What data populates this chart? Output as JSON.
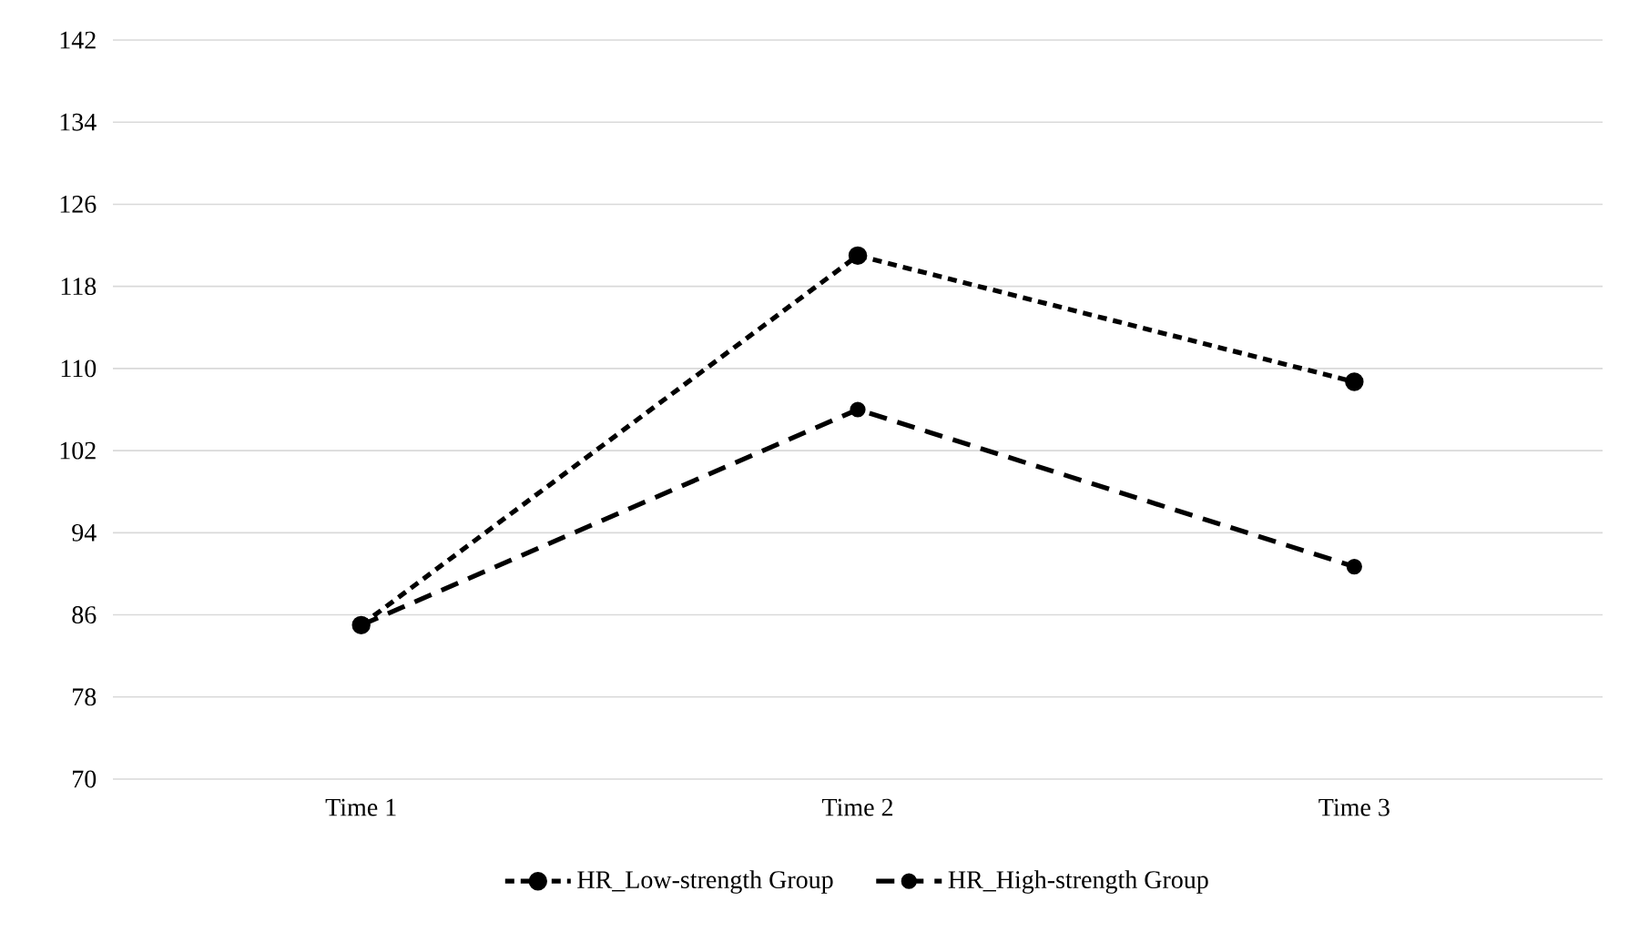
{
  "chart_data": {
    "type": "line",
    "categories": [
      "Time 1",
      "Time 2",
      "Time 3"
    ],
    "series": [
      {
        "name": "HR_Low-strength Group",
        "color": "#000000",
        "values": [
          85,
          121,
          108.7
        ],
        "line_style": "dotted"
      },
      {
        "name": "HR_High-strength Group",
        "color": "#000000",
        "values": [
          85,
          106,
          90.7
        ],
        "line_style": "dashed"
      }
    ],
    "ylim": [
      70,
      142
    ],
    "yticks": [
      70,
      78,
      86,
      94,
      102,
      110,
      118,
      126,
      134,
      142
    ],
    "grid": "y",
    "legend": "bottom",
    "marker": "circle"
  }
}
